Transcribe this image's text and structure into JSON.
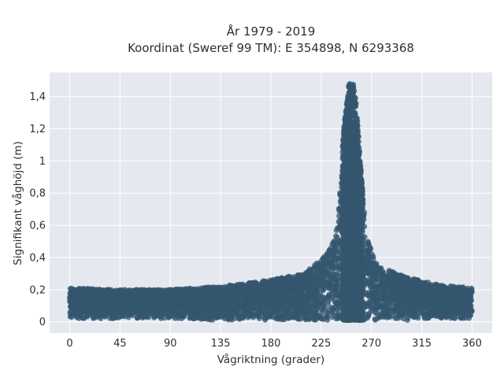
{
  "chart_data": {
    "type": "scatter",
    "title_line1": "År 1979 - 2019",
    "title_line2": "Koordinat (Sweref 99 TM): E 354898, N 6293368",
    "xlabel": "Vågriktning (grader)",
    "ylabel": "Signifikant våghöjd (m)",
    "xlim": [
      -18,
      378
    ],
    "ylim": [
      -0.07,
      1.55
    ],
    "x_ticks": [
      0,
      45,
      90,
      135,
      180,
      225,
      270,
      315,
      360
    ],
    "x_tick_labels": [
      "0",
      "45",
      "90",
      "135",
      "180",
      "225",
      "270",
      "315",
      "360"
    ],
    "y_ticks": [
      0,
      0.2,
      0.4,
      0.6,
      0.8,
      1.0,
      1.2,
      1.4
    ],
    "y_tick_labels": [
      "0",
      "0,2",
      "0,4",
      "0,6",
      "0,8",
      "1",
      "1,2",
      "1,4"
    ],
    "grid": true,
    "marker_color": "#34576f",
    "plot_background": "#e5e8ef",
    "envelope": [
      {
        "x": 0,
        "ymin": 0.02,
        "ymax": 0.21
      },
      {
        "x": 45,
        "ymin": 0.02,
        "ymax": 0.2
      },
      {
        "x": 90,
        "ymin": 0.02,
        "ymax": 0.2
      },
      {
        "x": 135,
        "ymin": 0.01,
        "ymax": 0.22
      },
      {
        "x": 180,
        "ymin": 0.01,
        "ymax": 0.26
      },
      {
        "x": 210,
        "ymin": 0.01,
        "ymax": 0.3
      },
      {
        "x": 230,
        "ymin": 0.01,
        "ymax": 0.42
      },
      {
        "x": 240,
        "ymin": 0.01,
        "ymax": 0.6
      },
      {
        "x": 245,
        "ymin": 0.01,
        "ymax": 1.2
      },
      {
        "x": 250,
        "ymin": 0.01,
        "ymax": 1.48
      },
      {
        "x": 255,
        "ymin": 0.01,
        "ymax": 1.48
      },
      {
        "x": 260,
        "ymin": 0.01,
        "ymax": 1.0
      },
      {
        "x": 265,
        "ymin": 0.01,
        "ymax": 0.55
      },
      {
        "x": 275,
        "ymin": 0.01,
        "ymax": 0.35
      },
      {
        "x": 300,
        "ymin": 0.01,
        "ymax": 0.28
      },
      {
        "x": 330,
        "ymin": 0.02,
        "ymax": 0.23
      },
      {
        "x": 360,
        "ymin": 0.02,
        "ymax": 0.21
      }
    ]
  }
}
